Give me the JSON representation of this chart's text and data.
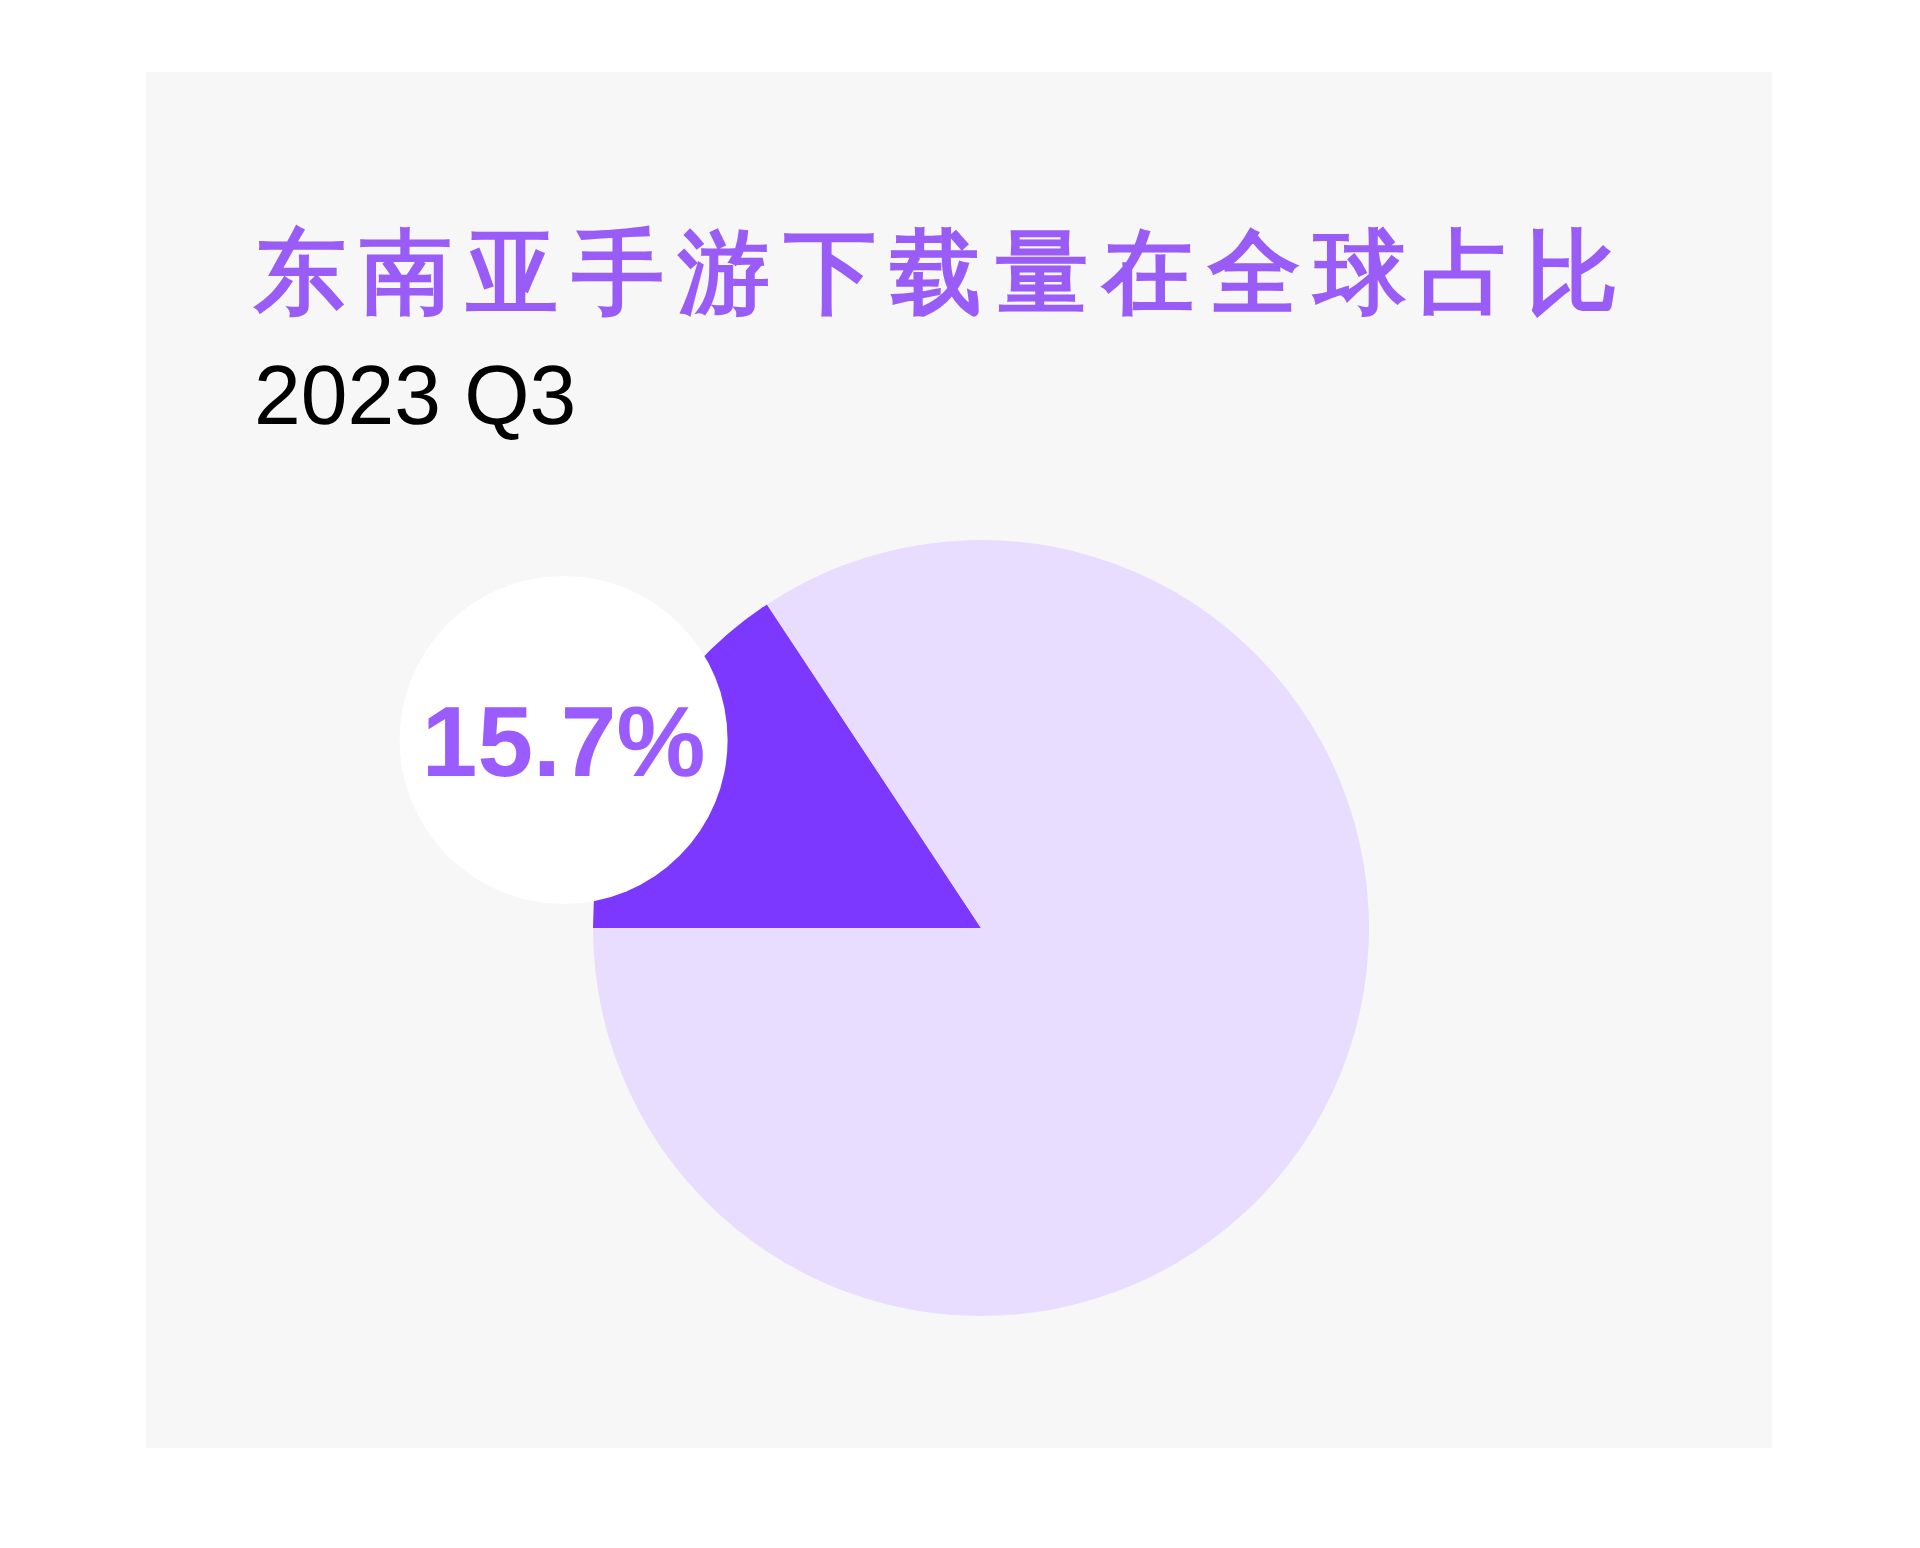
{
  "chart_data": {
    "type": "pie",
    "title": "东南亚手游下载量在全球占比",
    "subtitle": "2023 Q3",
    "categories": [
      null,
      null
    ],
    "values": [
      15.7,
      84.3
    ],
    "colors": [
      "#7c38ff",
      "#e8ddff"
    ],
    "value_labels": [
      "15.7%",
      null
    ]
  }
}
